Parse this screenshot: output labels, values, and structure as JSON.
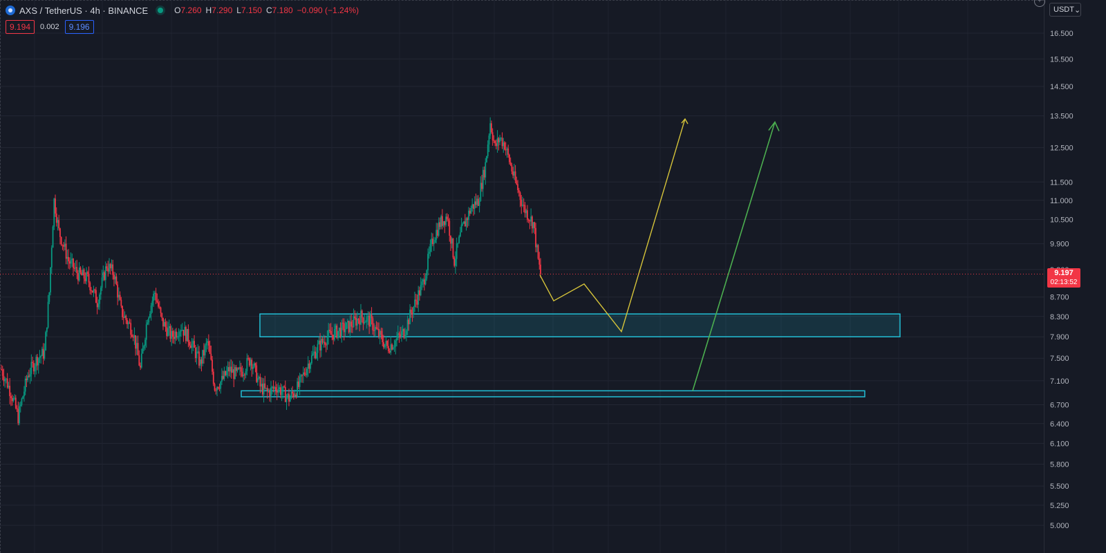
{
  "header": {
    "symbol_title": "AXS / TetherUS · 4h · BINANCE",
    "ohlc": [
      {
        "label": "O",
        "value": "7.260"
      },
      {
        "label": "H",
        "value": "7.290"
      },
      {
        "label": "L",
        "value": "7.150"
      },
      {
        "label": "C",
        "value": "7.180"
      }
    ],
    "change": "−0.090 (−1.24%)",
    "bid": "9.194",
    "spread": "0.002",
    "ask": "9.196"
  },
  "currency_selector": {
    "label": "USDT",
    "caret": "⌄"
  },
  "price_axis": {
    "last_price": "9.197",
    "countdown": "02:13:52"
  },
  "colors": {
    "background": "#161a25",
    "up": "#089981",
    "down": "#f23645",
    "zone": "#22bfd6",
    "arrow_yellow": "#d6c43a",
    "arrow_green": "#4caf50"
  },
  "icons": {
    "symbol": "axs-logo-icon",
    "status": "market-status-icon",
    "add": "plus-circle-icon"
  },
  "chart_data": {
    "type": "candlestick",
    "scale": "log",
    "ylim": [
      4.8,
      17.2
    ],
    "yticks": [
      "16.500",
      "15.500",
      "14.500",
      "13.500",
      "12.500",
      "11.500",
      "11.000",
      "10.500",
      "9.900",
      "9.300",
      "8.700",
      "8.300",
      "7.900",
      "7.500",
      "7.100",
      "6.700",
      "6.400",
      "6.100",
      "5.800",
      "5.500",
      "5.250",
      "5.000"
    ],
    "last_price": 9.197,
    "n_candles": 280,
    "close_path": [
      [
        0,
        7.3
      ],
      [
        8,
        6.9
      ],
      [
        14,
        6.5
      ],
      [
        22,
        7.2
      ],
      [
        30,
        7.5
      ],
      [
        36,
        7.6
      ],
      [
        40,
        8.8
      ],
      [
        44,
        11.0
      ],
      [
        48,
        10.2
      ],
      [
        56,
        9.5
      ],
      [
        64,
        9.2
      ],
      [
        72,
        9.1
      ],
      [
        80,
        8.6
      ],
      [
        88,
        9.4
      ],
      [
        94,
        9.2
      ],
      [
        100,
        8.4
      ],
      [
        110,
        8.0
      ],
      [
        116,
        7.3
      ],
      [
        122,
        8.3
      ],
      [
        128,
        8.8
      ],
      [
        134,
        8.2
      ],
      [
        142,
        7.9
      ],
      [
        150,
        8.1
      ],
      [
        158,
        7.8
      ],
      [
        166,
        7.4
      ],
      [
        172,
        7.8
      ],
      [
        178,
        7.0
      ],
      [
        184,
        7.1
      ],
      [
        190,
        7.3
      ],
      [
        196,
        7.2
      ],
      [
        202,
        7.3
      ],
      [
        208,
        7.5
      ],
      [
        216,
        7.0
      ],
      [
        222,
        6.9
      ],
      [
        230,
        7.0
      ],
      [
        240,
        6.8
      ],
      [
        248,
        7.0
      ],
      [
        256,
        7.4
      ],
      [
        264,
        7.7
      ],
      [
        272,
        7.9
      ],
      [
        280,
        8.0
      ],
      [
        290,
        8.1
      ],
      [
        300,
        8.3
      ],
      [
        308,
        8.2
      ],
      [
        316,
        7.9
      ],
      [
        322,
        7.7
      ],
      [
        328,
        7.8
      ],
      [
        336,
        8.0
      ],
      [
        344,
        8.5
      ],
      [
        352,
        9.0
      ],
      [
        360,
        10.0
      ],
      [
        366,
        10.4
      ],
      [
        372,
        10.6
      ],
      [
        378,
        9.5
      ],
      [
        384,
        10.2
      ],
      [
        392,
        10.8
      ],
      [
        398,
        11.0
      ],
      [
        404,
        12.0
      ],
      [
        408,
        13.3
      ],
      [
        412,
        12.5
      ],
      [
        416,
        12.8
      ],
      [
        420,
        12.6
      ],
      [
        424,
        12.1
      ],
      [
        428,
        11.6
      ],
      [
        432,
        11.2
      ],
      [
        436,
        10.8
      ],
      [
        440,
        10.6
      ],
      [
        444,
        10.4
      ],
      [
        448,
        9.5
      ],
      [
        450,
        9.197
      ]
    ],
    "annotations": {
      "upper_zone": {
        "price_from": 7.9,
        "price_to": 8.35
      },
      "lower_zone": {
        "price_from": 6.83,
        "price_to": 6.93
      },
      "yellow_path_prices": [
        9.18,
        8.62,
        8.98,
        8.0,
        13.4
      ],
      "green_path_prices": [
        6.93,
        13.3
      ]
    }
  }
}
